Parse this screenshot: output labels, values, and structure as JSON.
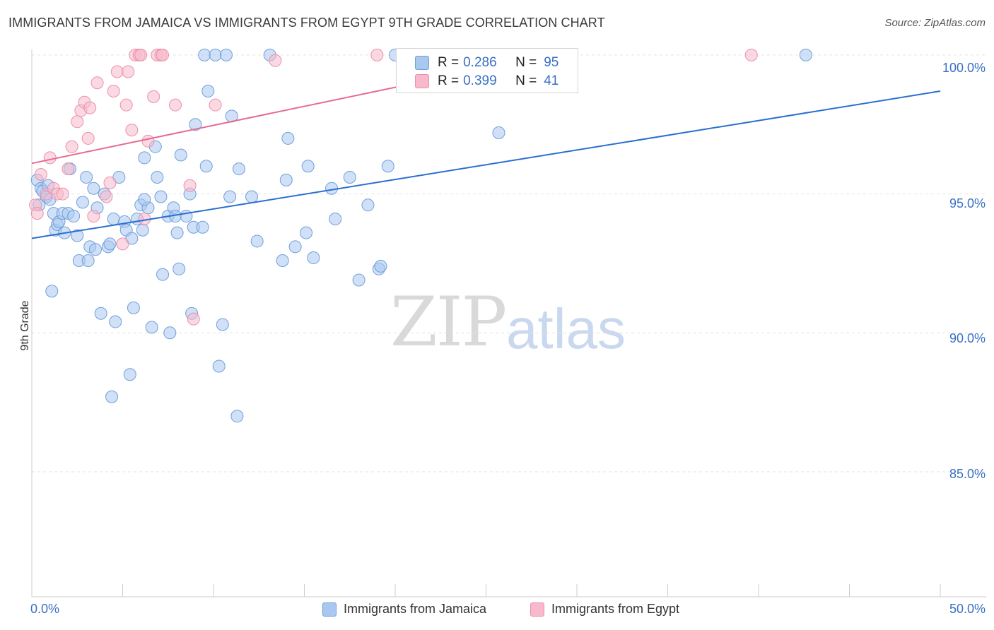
{
  "title": "IMMIGRANTS FROM JAMAICA VS IMMIGRANTS FROM EGYPT 9TH GRADE CORRELATION CHART",
  "source": "Source: ZipAtlas.com",
  "watermark": {
    "zip": "ZIP",
    "atlas": "atlas"
  },
  "legend_top": {
    "rows": [
      {
        "r_label": "R =",
        "r_value": "0.286",
        "n_label": "N =",
        "n_value": "95"
      },
      {
        "r_label": "R =",
        "r_value": "0.399",
        "n_label": "N =",
        "n_value": "41"
      }
    ]
  },
  "legend_bottom": {
    "items": [
      "Immigrants from Jamaica",
      "Immigrants from Egypt"
    ]
  },
  "colors": {
    "jamaica_fill": "#a9c8f0",
    "jamaica_stroke": "#6f9fdc",
    "jamaica_line": "#2a6fd0",
    "egypt_fill": "#f7b9cb",
    "egypt_stroke": "#ec8fab",
    "egypt_line": "#e76a92",
    "tick_label": "#3a6fc4",
    "grid": "#e2e2e2"
  },
  "chart_data": {
    "type": "scatter",
    "title": "IMMIGRANTS FROM JAMAICA VS IMMIGRANTS FROM EGYPT 9TH GRADE CORRELATION CHART",
    "xlabel": "",
    "ylabel": "9th Grade",
    "xlim": [
      0,
      50
    ],
    "ylim": [
      80.5,
      100.2
    ],
    "x_tick_labels": [
      "0.0%",
      "50.0%"
    ],
    "y_ticks": [
      85,
      90,
      95,
      100
    ],
    "y_tick_labels": [
      "85.0%",
      "90.0%",
      "95.0%",
      "100.0%"
    ],
    "series": [
      {
        "name": "Immigrants from Jamaica",
        "trend": {
          "x": [
            0,
            50
          ],
          "y": [
            93.4,
            98.7
          ]
        },
        "points": [
          [
            0.3,
            95.5
          ],
          [
            0.5,
            95.2
          ],
          [
            0.6,
            95.1
          ],
          [
            0.8,
            94.9
          ],
          [
            0.9,
            95.3
          ],
          [
            1.0,
            94.8
          ],
          [
            1.2,
            94.3
          ],
          [
            1.3,
            93.7
          ],
          [
            1.4,
            93.9
          ],
          [
            1.5,
            94.0
          ],
          [
            1.7,
            94.3
          ],
          [
            1.8,
            93.6
          ],
          [
            2.0,
            94.3
          ],
          [
            2.1,
            95.9
          ],
          [
            2.3,
            94.2
          ],
          [
            2.5,
            93.5
          ],
          [
            2.6,
            92.6
          ],
          [
            2.8,
            94.7
          ],
          [
            3.0,
            95.6
          ],
          [
            3.1,
            92.6
          ],
          [
            3.2,
            93.1
          ],
          [
            3.4,
            95.2
          ],
          [
            3.6,
            94.5
          ],
          [
            3.8,
            90.7
          ],
          [
            4.0,
            95.0
          ],
          [
            4.2,
            93.1
          ],
          [
            4.3,
            93.2
          ],
          [
            4.4,
            87.7
          ],
          [
            4.5,
            94.1
          ],
          [
            4.6,
            90.4
          ],
          [
            4.8,
            95.6
          ],
          [
            5.1,
            94.0
          ],
          [
            5.2,
            93.7
          ],
          [
            5.4,
            88.5
          ],
          [
            5.5,
            93.4
          ],
          [
            5.6,
            90.9
          ],
          [
            5.8,
            94.1
          ],
          [
            6.0,
            94.6
          ],
          [
            6.1,
            93.7
          ],
          [
            6.2,
            96.3
          ],
          [
            6.4,
            94.5
          ],
          [
            6.6,
            90.2
          ],
          [
            6.8,
            96.7
          ],
          [
            6.9,
            95.6
          ],
          [
            7.1,
            94.9
          ],
          [
            7.2,
            92.1
          ],
          [
            7.5,
            94.2
          ],
          [
            7.6,
            90.0
          ],
          [
            7.8,
            94.5
          ],
          [
            7.9,
            94.2
          ],
          [
            8.0,
            93.6
          ],
          [
            8.1,
            92.3
          ],
          [
            8.2,
            96.4
          ],
          [
            8.5,
            94.2
          ],
          [
            8.7,
            95.0
          ],
          [
            8.8,
            90.7
          ],
          [
            8.9,
            93.8
          ],
          [
            9.0,
            97.5
          ],
          [
            9.4,
            93.8
          ],
          [
            9.5,
            100.0
          ],
          [
            9.6,
            96.0
          ],
          [
            9.7,
            98.7
          ],
          [
            10.1,
            100.0
          ],
          [
            10.3,
            88.8
          ],
          [
            10.5,
            90.3
          ],
          [
            10.7,
            100.0
          ],
          [
            10.9,
            94.9
          ],
          [
            11.0,
            97.8
          ],
          [
            11.3,
            87.0
          ],
          [
            12.1,
            94.9
          ],
          [
            12.4,
            93.3
          ],
          [
            13.1,
            100.0
          ],
          [
            13.8,
            92.6
          ],
          [
            14.0,
            95.5
          ],
          [
            14.1,
            97.0
          ],
          [
            14.5,
            93.1
          ],
          [
            15.1,
            93.6
          ],
          [
            15.2,
            96.0
          ],
          [
            15.5,
            92.7
          ],
          [
            16.5,
            95.2
          ],
          [
            16.7,
            94.1
          ],
          [
            18.0,
            91.9
          ],
          [
            18.5,
            94.6
          ],
          [
            19.1,
            92.3
          ],
          [
            19.2,
            92.4
          ],
          [
            19.6,
            96.0
          ],
          [
            20.0,
            100.0
          ],
          [
            25.7,
            97.2
          ],
          [
            42.6,
            100.0
          ],
          [
            1.1,
            91.5
          ],
          [
            0.4,
            94.6
          ],
          [
            3.5,
            93.0
          ],
          [
            6.2,
            94.8
          ],
          [
            11.4,
            95.9
          ],
          [
            17.5,
            95.6
          ]
        ]
      },
      {
        "name": "Immigrants from Egypt",
        "trend": {
          "x": [
            0,
            28.5
          ],
          "y": [
            96.1,
            100.0
          ]
        },
        "points": [
          [
            0.2,
            94.6
          ],
          [
            0.3,
            94.3
          ],
          [
            0.5,
            95.7
          ],
          [
            0.8,
            95.0
          ],
          [
            1.0,
            96.3
          ],
          [
            1.2,
            95.2
          ],
          [
            1.4,
            95.0
          ],
          [
            1.7,
            95.0
          ],
          [
            2.0,
            95.9
          ],
          [
            2.2,
            96.7
          ],
          [
            2.5,
            97.6
          ],
          [
            2.7,
            98.0
          ],
          [
            2.9,
            98.3
          ],
          [
            3.1,
            97.0
          ],
          [
            3.2,
            98.1
          ],
          [
            3.4,
            94.2
          ],
          [
            3.6,
            99.0
          ],
          [
            4.1,
            94.9
          ],
          [
            4.3,
            95.4
          ],
          [
            4.5,
            98.7
          ],
          [
            4.7,
            99.4
          ],
          [
            5.0,
            93.2
          ],
          [
            5.2,
            98.2
          ],
          [
            5.3,
            99.4
          ],
          [
            5.5,
            97.3
          ],
          [
            5.7,
            100.0
          ],
          [
            5.9,
            100.0
          ],
          [
            6.0,
            100.0
          ],
          [
            6.2,
            94.1
          ],
          [
            6.4,
            96.9
          ],
          [
            6.7,
            98.5
          ],
          [
            6.9,
            100.0
          ],
          [
            7.1,
            100.0
          ],
          [
            7.2,
            100.0
          ],
          [
            7.9,
            98.2
          ],
          [
            8.7,
            95.3
          ],
          [
            8.9,
            90.5
          ],
          [
            10.1,
            98.2
          ],
          [
            13.4,
            99.8
          ],
          [
            19.0,
            100.0
          ],
          [
            39.6,
            100.0
          ]
        ]
      }
    ]
  }
}
